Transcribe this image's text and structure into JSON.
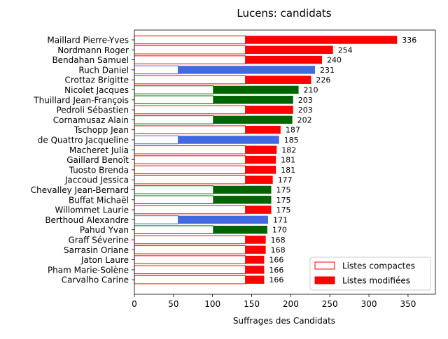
{
  "chart_data": {
    "type": "bar",
    "orientation": "horizontal",
    "stacked": true,
    "title": "Lucens: candidats",
    "xlabel": "Suffrages des Candidats",
    "ylabel": "",
    "xlim": [
      0,
      385
    ],
    "xticks": [
      "0",
      "50",
      "100",
      "150",
      "200",
      "250",
      "300",
      "350"
    ],
    "grid": false,
    "legend_position": "lower right",
    "legend": [
      {
        "label": "Listes compactes",
        "style": "outline",
        "color": "#ff0000"
      },
      {
        "label": "Listes modifiées",
        "style": "filled",
        "color": "#ff0000"
      }
    ],
    "party_colors": {
      "red": "#ff0000",
      "blue": "#4169e1",
      "green": "#006400"
    },
    "candidates": [
      {
        "name": "Maillard Pierre-Yves",
        "compact": 142,
        "modified": 194,
        "total": 336,
        "party": "red"
      },
      {
        "name": "Nordmann Roger",
        "compact": 142,
        "modified": 112,
        "total": 254,
        "party": "red"
      },
      {
        "name": "Bendahan Samuel",
        "compact": 142,
        "modified": 98,
        "total": 240,
        "party": "red"
      },
      {
        "name": "Ruch Daniel",
        "compact": 56,
        "modified": 175,
        "total": 231,
        "party": "blue"
      },
      {
        "name": "Crottaz Brigitte",
        "compact": 142,
        "modified": 84,
        "total": 226,
        "party": "red"
      },
      {
        "name": "Nicolet Jacques",
        "compact": 101,
        "modified": 109,
        "total": 210,
        "party": "green"
      },
      {
        "name": "Thuillard Jean-François",
        "compact": 101,
        "modified": 102,
        "total": 203,
        "party": "green"
      },
      {
        "name": "Pedroli Sébastien",
        "compact": 142,
        "modified": 61,
        "total": 203,
        "party": "red"
      },
      {
        "name": "Cornamusaz Alain",
        "compact": 101,
        "modified": 101,
        "total": 202,
        "party": "green"
      },
      {
        "name": "Tschopp Jean",
        "compact": 142,
        "modified": 45,
        "total": 187,
        "party": "red"
      },
      {
        "name": "de Quattro Jacqueline",
        "compact": 56,
        "modified": 129,
        "total": 185,
        "party": "blue"
      },
      {
        "name": "Macheret Julia",
        "compact": 142,
        "modified": 40,
        "total": 182,
        "party": "red"
      },
      {
        "name": "Gaillard Benoît",
        "compact": 142,
        "modified": 39,
        "total": 181,
        "party": "red"
      },
      {
        "name": "Tuosto Brenda",
        "compact": 142,
        "modified": 39,
        "total": 181,
        "party": "red"
      },
      {
        "name": "Jaccoud Jessica",
        "compact": 142,
        "modified": 35,
        "total": 177,
        "party": "red"
      },
      {
        "name": "Chevalley Jean-Bernard",
        "compact": 101,
        "modified": 74,
        "total": 175,
        "party": "green"
      },
      {
        "name": "Buffat Michaël",
        "compact": 101,
        "modified": 74,
        "total": 175,
        "party": "green"
      },
      {
        "name": "Willommet Laurie",
        "compact": 142,
        "modified": 33,
        "total": 175,
        "party": "red"
      },
      {
        "name": "Berthoud Alexandre",
        "compact": 56,
        "modified": 115,
        "total": 171,
        "party": "blue"
      },
      {
        "name": "Pahud Yvan",
        "compact": 101,
        "modified": 69,
        "total": 170,
        "party": "green"
      },
      {
        "name": "Graff Séverine",
        "compact": 142,
        "modified": 26,
        "total": 168,
        "party": "red"
      },
      {
        "name": "Sarrasin Oriane",
        "compact": 142,
        "modified": 26,
        "total": 168,
        "party": "red"
      },
      {
        "name": "Jaton Laure",
        "compact": 142,
        "modified": 24,
        "total": 166,
        "party": "red"
      },
      {
        "name": "Pham Marie-Solène",
        "compact": 142,
        "modified": 24,
        "total": 166,
        "party": "red"
      },
      {
        "name": "Carvalho Carine",
        "compact": 142,
        "modified": 24,
        "total": 166,
        "party": "red"
      }
    ]
  }
}
